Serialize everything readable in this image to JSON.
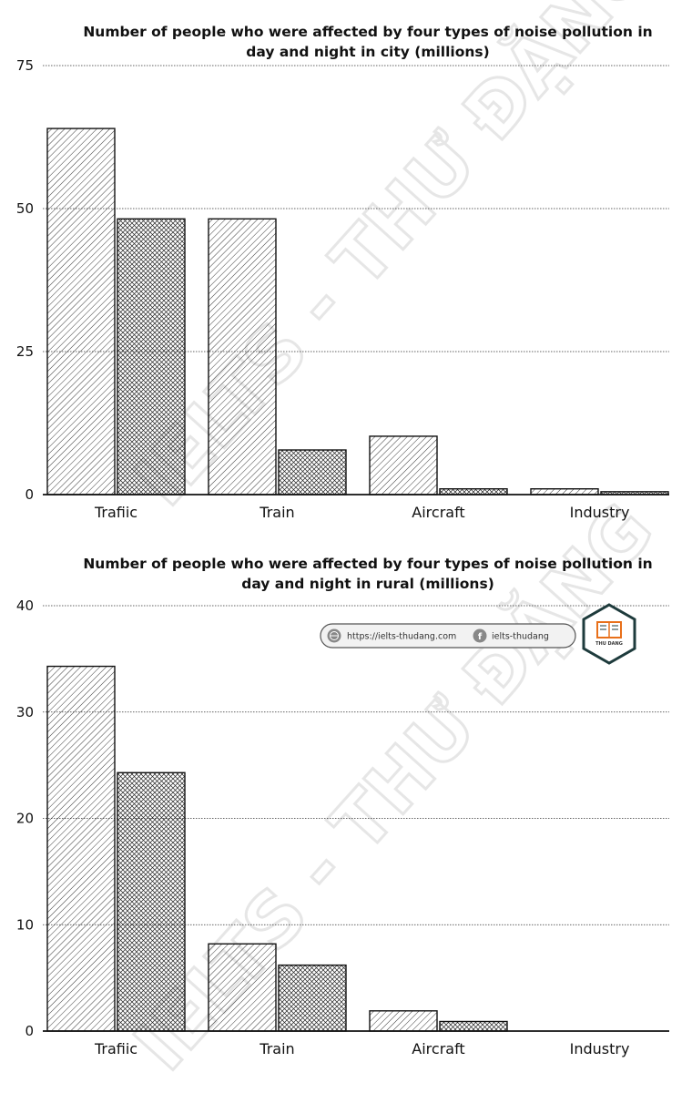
{
  "chart_data": [
    {
      "type": "bar",
      "title_line1": "Number of people who were affected by four types of noise pollution in",
      "title_line2": "day and night in city (millions)",
      "categories": [
        "Trafiic",
        "Train",
        "Aircraft",
        "Industry"
      ],
      "series": [
        {
          "values": [
            64,
            48.2,
            10.2,
            1.0
          ],
          "pattern": "diagonal-hatch"
        },
        {
          "values": [
            48.2,
            7.8,
            1.0,
            0.5
          ],
          "pattern": "cross-hatch"
        }
      ],
      "yticks": [
        0,
        25,
        50,
        75
      ],
      "ylim": [
        0,
        75
      ],
      "grid": true
    },
    {
      "type": "bar",
      "title_line1": "Number of people who were affected by four types of noise pollution in",
      "title_line2": "day and night in rural (millions)",
      "categories": [
        "Trafiic",
        "Train",
        "Aircraft",
        "Industry"
      ],
      "series": [
        {
          "values": [
            34.3,
            8.2,
            1.9,
            0
          ],
          "pattern": "diagonal-hatch"
        },
        {
          "values": [
            24.3,
            6.2,
            0.9,
            0
          ],
          "pattern": "cross-hatch"
        }
      ],
      "yticks": [
        0,
        10,
        20,
        30,
        40
      ],
      "ylim": [
        0,
        40
      ],
      "grid": true
    }
  ],
  "watermark": "IELTS - THƯ ĐẶNG",
  "branding": {
    "website": "https://ielts-thudang.com",
    "facebook": "ielts-thudang",
    "logo_text": "THU DANG"
  }
}
